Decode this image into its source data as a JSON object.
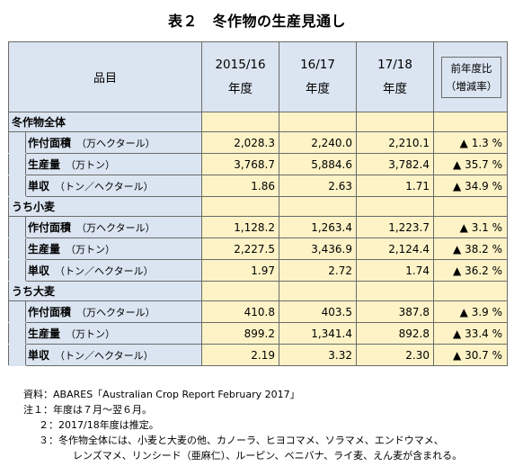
{
  "title": "表２　冬作物の生産見通し",
  "header": {
    "item": "品目",
    "years": [
      {
        "line1": "2015/16",
        "line2": "年度"
      },
      {
        "line1": "16/17",
        "line2": "年度"
      },
      {
        "line1": "17/18",
        "line2": "年度"
      }
    ],
    "change_line1": "前年度比",
    "change_line2": "（増減率）"
  },
  "sections": [
    {
      "label": "冬作物全体",
      "rows": [
        {
          "name": "作付面積",
          "unit": "（万ヘクタール）",
          "v1": "2,028.3",
          "v2": "2,240.0",
          "v3": "2,210.1",
          "chg": "▲ 1.3 %"
        },
        {
          "name": "生産量",
          "unit": "（万トン）",
          "v1": "3,768.7",
          "v2": "5,884.6",
          "v3": "3,782.4",
          "chg": "▲ 35.7 %"
        },
        {
          "name": "単収",
          "unit": "（トン／ヘクタール）",
          "v1": "1.86",
          "v2": "2.63",
          "v3": "1.71",
          "chg": "▲ 34.9 %"
        }
      ]
    },
    {
      "label": "うち小麦",
      "rows": [
        {
          "name": "作付面積",
          "unit": "（万ヘクタール）",
          "v1": "1,128.2",
          "v2": "1,263.4",
          "v3": "1,223.7",
          "chg": "▲ 3.1 %"
        },
        {
          "name": "生産量",
          "unit": "（万トン）",
          "v1": "2,227.5",
          "v2": "3,436.9",
          "v3": "2,124.4",
          "chg": "▲ 38.2 %"
        },
        {
          "name": "単収",
          "unit": "（トン／ヘクタール）",
          "v1": "1.97",
          "v2": "2.72",
          "v3": "1.74",
          "chg": "▲ 36.2 %"
        }
      ]
    },
    {
      "label": "うち大麦",
      "rows": [
        {
          "name": "作付面積",
          "unit": "（万ヘクタール）",
          "v1": "410.8",
          "v2": "403.5",
          "v3": "387.8",
          "chg": "▲ 3.9 %"
        },
        {
          "name": "生産量",
          "unit": "（万トン）",
          "v1": "899.2",
          "v2": "1,341.4",
          "v3": "892.8",
          "chg": "▲ 33.4 %"
        },
        {
          "name": "単収",
          "unit": "（トン／ヘクタール）",
          "v1": "2.19",
          "v2": "3.32",
          "v3": "2.30",
          "chg": "▲ 30.7 %"
        }
      ]
    }
  ],
  "notes": {
    "source": "資料：ABARES「Australian Crop Report February 2017」",
    "note1": "注１：年度は７月～翌６月。",
    "note2": "２：2017/18年度は推定。",
    "note3a": "３：冬作物全体には、小麦と大麦の他、カノーラ、ヒヨコマメ、ソラマメ、エンドウマメ、",
    "note3b": "レンズマメ、リンシード（亜麻仁）、ルーピン、ベニバナ、ライ麦、えん麦が含まれる。"
  },
  "colors": {
    "header_bg": "#dbe5f1",
    "value_bg": "#fdf3c6",
    "border": "#6b6b6b"
  }
}
